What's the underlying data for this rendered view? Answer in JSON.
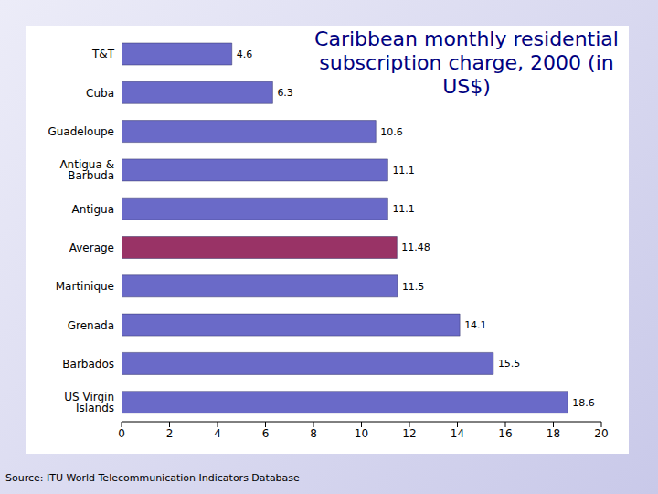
{
  "chart_data": {
    "type": "bar",
    "title": "Caribbean monthly residential subscription charge, 2000 (in US$)",
    "annotation": "Source: ITU World Telecommunication Indicators Database",
    "orientation": "horizontal",
    "categories": [
      "T&T",
      "Cuba",
      "Guadeloupe",
      "Antigua & Barbuda",
      "Antigua",
      "Average",
      "Martinique",
      "Grenada",
      "Barbados",
      "US Virgin Islands"
    ],
    "values": [
      4.6,
      6.3,
      10.6,
      11.1,
      11.1,
      11.48,
      11.5,
      14.1,
      15.5,
      18.6
    ],
    "colors": [
      "#6a6ac8",
      "#6a6ac8",
      "#6a6ac8",
      "#6a6ac8",
      "#6a6ac8",
      "#993366",
      "#6a6ac8",
      "#6a6ac8",
      "#6a6ac8",
      "#6a6ac8"
    ],
    "xlim": [
      0,
      20
    ],
    "xticks": [
      0,
      2,
      4,
      6,
      8,
      10,
      12,
      14,
      16,
      18,
      20
    ],
    "data_labels": true,
    "grid": false
  }
}
